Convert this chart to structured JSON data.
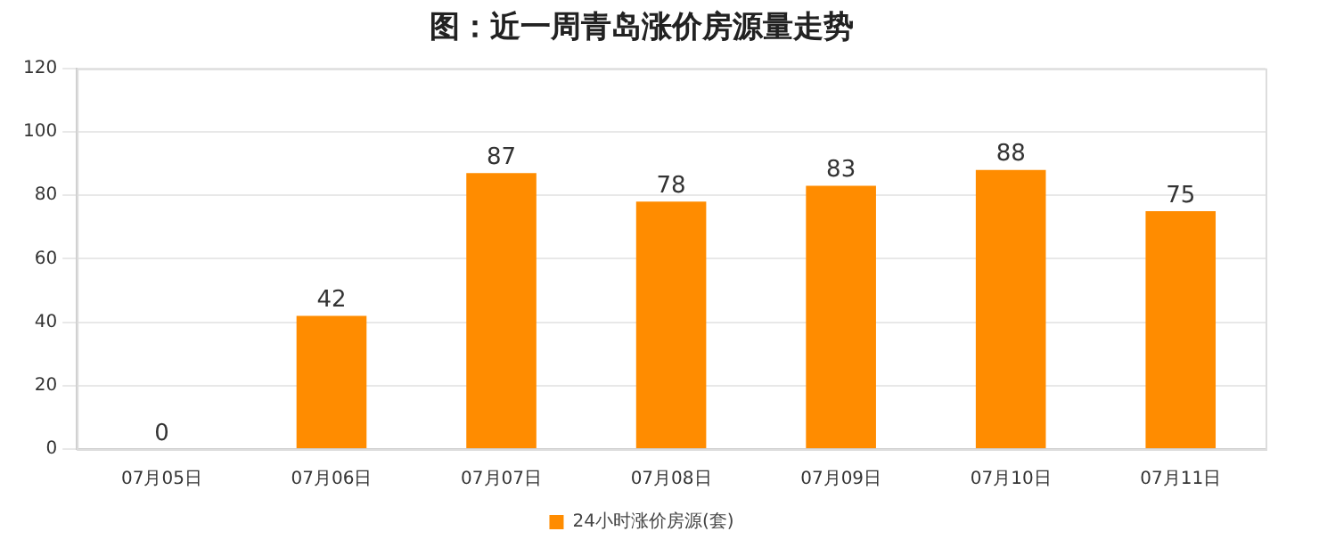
{
  "chart_data": {
    "type": "bar",
    "title": "图：近一周青岛涨价房源量走势",
    "categories": [
      "07月05日",
      "07月06日",
      "07月07日",
      "07月08日",
      "07月09日",
      "07月10日",
      "07月11日"
    ],
    "series": [
      {
        "name": "24小时涨价房源(套)",
        "color": "#ff8c00",
        "values": [
          0,
          42,
          87,
          78,
          83,
          88,
          75
        ]
      }
    ],
    "ylim": [
      0,
      120
    ],
    "yticks": [
      0,
      20,
      40,
      60,
      80,
      100,
      120
    ],
    "grid": "y",
    "legend": "bottom",
    "data_labels": true
  }
}
